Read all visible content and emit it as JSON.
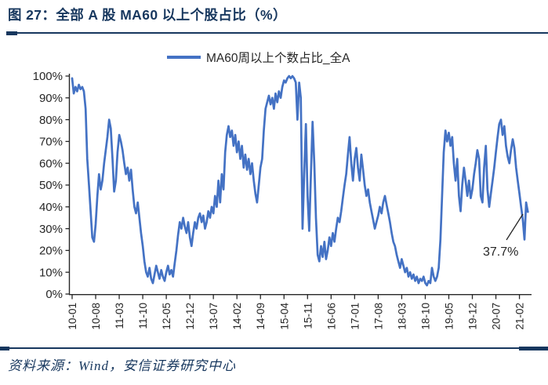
{
  "header": {
    "title": "图 27：全部 A 股 MA60 以上个股占比（%）"
  },
  "legend": {
    "series_label": "MA60周以上个数占比_全A"
  },
  "chart_data": {
    "type": "line",
    "title": "全部 A 股 MA60 以上个股占比（%）",
    "xlabel": "",
    "ylabel": "",
    "ylim": [
      0,
      100
    ],
    "grid": false,
    "legend_position": "top-center",
    "y_tick_labels": [
      "0%",
      "10%",
      "20%",
      "30%",
      "40%",
      "50%",
      "60%",
      "70%",
      "80%",
      "90%",
      "100%"
    ],
    "x_tick_labels": [
      "10-01",
      "10-08",
      "11-03",
      "11-10",
      "12-05",
      "12-12",
      "13-07",
      "14-02",
      "14-09",
      "15-04",
      "15-11",
      "16-06",
      "17-01",
      "17-08",
      "18-03",
      "18-10",
      "19-05",
      "19-12",
      "20-07",
      "21-02"
    ],
    "x_tick_every_n_points": 14,
    "annotation": {
      "text": "37.7%",
      "last_value": 37.7
    },
    "series": [
      {
        "name": "MA60周以上个数占比_全A",
        "color": "#4472C4",
        "values": [
          99,
          92,
          95,
          93,
          96,
          94,
          95,
          93,
          85,
          62,
          50,
          38,
          26,
          24,
          32,
          45,
          55,
          48,
          52,
          60,
          66,
          72,
          80,
          76,
          62,
          47,
          52,
          65,
          73,
          70,
          66,
          60,
          55,
          58,
          52,
          57,
          48,
          40,
          37,
          42,
          35,
          28,
          22,
          15,
          10,
          8,
          12,
          7,
          5,
          9,
          13,
          10,
          7,
          11,
          8,
          6,
          10,
          13,
          9,
          11,
          8,
          14,
          20,
          27,
          33,
          30,
          35,
          31,
          28,
          33,
          26,
          22,
          28,
          33,
          30,
          35,
          37,
          33,
          36,
          30,
          33,
          38,
          35,
          40,
          37,
          45,
          40,
          52,
          42,
          55,
          48,
          65,
          73,
          77,
          72,
          75,
          68,
          73,
          65,
          70,
          62,
          68,
          58,
          64,
          57,
          62,
          55,
          60,
          52,
          46,
          42,
          50,
          58,
          62,
          75,
          85,
          88,
          91,
          87,
          90,
          85,
          92,
          88,
          93,
          90,
          95,
          98,
          97,
          99,
          100,
          99,
          100,
          99,
          97,
          80,
          97,
          90,
          30,
          55,
          78,
          45,
          29,
          55,
          79,
          60,
          35,
          18,
          15,
          22,
          17,
          24,
          16,
          20,
          26,
          22,
          28,
          24,
          30,
          35,
          33,
          38,
          44,
          50,
          55,
          64,
          72,
          60,
          52,
          62,
          67,
          58,
          52,
          64,
          57,
          50,
          45,
          48,
          42,
          38,
          34,
          30,
          33,
          36,
          40,
          37,
          42,
          45,
          41,
          37,
          33,
          28,
          24,
          22,
          18,
          15,
          12,
          16,
          13,
          10,
          12,
          8,
          10,
          7,
          9,
          6,
          8,
          5,
          7,
          6,
          8,
          5,
          4,
          6,
          5,
          12,
          8,
          6,
          8,
          12,
          25,
          45,
          65,
          75,
          70,
          74,
          68,
          72,
          60,
          52,
          62,
          45,
          38,
          50,
          58,
          52,
          45,
          52,
          44,
          48,
          55,
          60,
          66,
          62,
          45,
          42,
          58,
          68,
          48,
          40,
          46,
          52,
          58,
          65,
          72,
          78,
          80,
          73,
          77,
          68,
          63,
          60,
          66,
          71,
          67,
          58,
          52,
          46,
          40,
          34,
          25,
          42,
          37.7
        ]
      }
    ]
  },
  "footer": {
    "source": "资料来源：Wind，安信证券研究中心"
  },
  "colors": {
    "accent_navy": "#17375E",
    "line_blue": "#4472C4",
    "axis_text": "#262626"
  }
}
